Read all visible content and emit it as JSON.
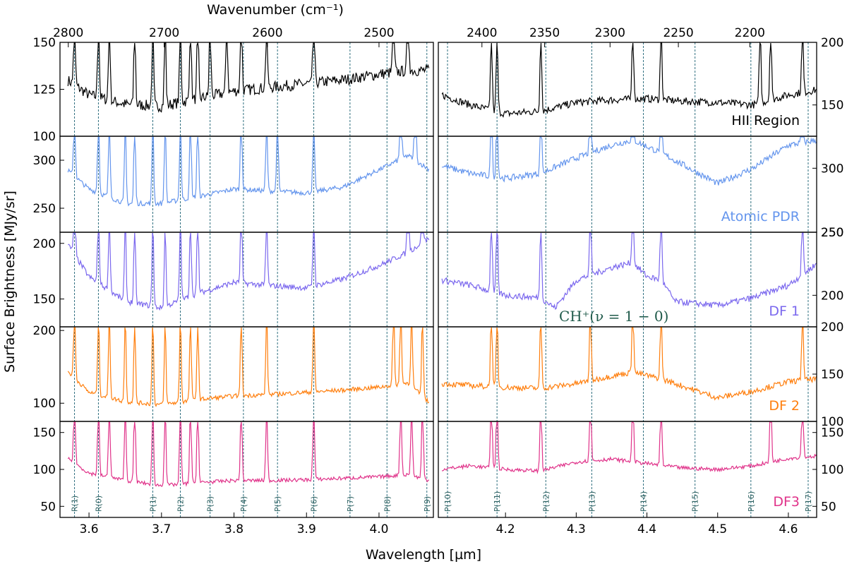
{
  "chart_data": {
    "type": "line",
    "xlabel": "Wavelength [µm]",
    "ylabel": "Surface Brightness [MJy/sr]",
    "top_xlabel": "Wavenumber (cm⁻¹)",
    "ch_label": "CH⁺(ν = 1 − 0)",
    "xlim_left": [
      3.56,
      4.075
    ],
    "xlim_right": [
      4.105,
      4.64
    ],
    "x_ticks_left": [
      "3.6",
      "3.7",
      "3.8",
      "3.9",
      "4.0"
    ],
    "x_ticks_right": [
      "4.2",
      "4.3",
      "4.4",
      "4.5",
      "4.6"
    ],
    "top_ticks_left": [
      "2800",
      "2700",
      "2600",
      "2500"
    ],
    "top_ticks_right": [
      "2400",
      "2350",
      "2300",
      "2250",
      "2200"
    ],
    "line_markers": [
      {
        "label": "R(1)",
        "x": 3.58
      },
      {
        "label": "R(0)",
        "x": 3.613
      },
      {
        "label": "P(1)",
        "x": 3.688
      },
      {
        "label": "P(2)",
        "x": 3.726
      },
      {
        "label": "P(3)",
        "x": 3.767
      },
      {
        "label": "P(4)",
        "x": 3.813
      },
      {
        "label": "P(5)",
        "x": 3.86
      },
      {
        "label": "P(6)",
        "x": 3.91
      },
      {
        "label": "P(7)",
        "x": 3.96
      },
      {
        "label": "P(8)",
        "x": 4.011
      },
      {
        "label": "P(9)",
        "x": 4.066
      },
      {
        "label": "P(10)",
        "x": 4.118
      },
      {
        "label": "P(11)",
        "x": 4.188
      },
      {
        "label": "P(12)",
        "x": 4.257
      },
      {
        "label": "P(13)",
        "x": 4.322
      },
      {
        "label": "P(14)",
        "x": 4.395
      },
      {
        "label": "P(15)",
        "x": 4.468
      },
      {
        "label": "P(16)",
        "x": 4.547
      },
      {
        "label": "P(17)",
        "x": 4.628
      }
    ],
    "panels": [
      {
        "name": "HII Region",
        "color": "#000000",
        "ylim_left": [
          100,
          150
        ],
        "ylim_right": [
          125,
          200
        ],
        "y_ticks_left": [
          "100",
          "125",
          "150"
        ],
        "y_ticks_right": [
          "150",
          "200"
        ],
        "left_continuum": [
          [
            3.57,
            130
          ],
          [
            3.6,
            122
          ],
          [
            3.65,
            117
          ],
          [
            3.7,
            116
          ],
          [
            3.75,
            120
          ],
          [
            3.8,
            124
          ],
          [
            3.85,
            126
          ],
          [
            3.9,
            128
          ],
          [
            3.95,
            130
          ],
          [
            4.0,
            133
          ],
          [
            4.04,
            135
          ],
          [
            4.07,
            135
          ]
        ],
        "right_continuum": [
          [
            4.11,
            158
          ],
          [
            4.15,
            150
          ],
          [
            4.2,
            143
          ],
          [
            4.25,
            145
          ],
          [
            4.3,
            152
          ],
          [
            4.35,
            154
          ],
          [
            4.4,
            155
          ],
          [
            4.45,
            153
          ],
          [
            4.5,
            152
          ],
          [
            4.55,
            150
          ],
          [
            4.6,
            158
          ],
          [
            4.64,
            162
          ]
        ],
        "peaks": [
          3.58,
          3.613,
          3.628,
          3.663,
          3.688,
          3.705,
          3.726,
          3.74,
          3.75,
          3.767,
          3.79,
          3.81,
          3.845,
          3.91,
          4.02,
          4.04,
          4.18,
          4.188,
          4.25,
          4.38,
          4.42,
          4.56,
          4.575,
          4.62
        ],
        "noise": 3
      },
      {
        "name": "Atomic PDR",
        "color": "#6495ed",
        "ylim_left": [
          225,
          325
        ],
        "ylim_right": [
          250,
          325
        ],
        "y_ticks_left": [
          "250",
          "300"
        ],
        "y_ticks_right": [
          "250",
          "300"
        ],
        "left_continuum": [
          [
            3.57,
            290
          ],
          [
            3.6,
            270
          ],
          [
            3.65,
            255
          ],
          [
            3.7,
            255
          ],
          [
            3.75,
            262
          ],
          [
            3.8,
            270
          ],
          [
            3.85,
            268
          ],
          [
            3.9,
            266
          ],
          [
            3.95,
            272
          ],
          [
            4.0,
            290
          ],
          [
            4.04,
            305
          ],
          [
            4.07,
            290
          ]
        ],
        "right_continuum": [
          [
            4.11,
            302
          ],
          [
            4.15,
            296
          ],
          [
            4.2,
            292
          ],
          [
            4.25,
            296
          ],
          [
            4.3,
            308
          ],
          [
            4.35,
            318
          ],
          [
            4.38,
            322
          ],
          [
            4.42,
            312
          ],
          [
            4.46,
            300
          ],
          [
            4.5,
            288
          ],
          [
            4.55,
            300
          ],
          [
            4.6,
            318
          ],
          [
            4.64,
            322
          ]
        ],
        "peaks": [
          3.58,
          3.613,
          3.628,
          3.65,
          3.663,
          3.688,
          3.705,
          3.726,
          3.74,
          3.75,
          3.81,
          3.845,
          3.86,
          3.91,
          4.03,
          4.05,
          4.18,
          4.188,
          4.25,
          4.32,
          4.38,
          4.42,
          4.62
        ],
        "noise": 2.5
      },
      {
        "name": "DF 1",
        "color": "#7b68ee",
        "ylim_left": [
          125,
          210
        ],
        "ylim_right": [
          175,
          250
        ],
        "y_ticks_left": [
          "150",
          "200"
        ],
        "y_ticks_right": [
          "200",
          "250"
        ],
        "left_continuum": [
          [
            3.57,
            200
          ],
          [
            3.6,
            170
          ],
          [
            3.65,
            148
          ],
          [
            3.7,
            142
          ],
          [
            3.75,
            155
          ],
          [
            3.8,
            165
          ],
          [
            3.85,
            162
          ],
          [
            3.9,
            160
          ],
          [
            3.95,
            168
          ],
          [
            4.0,
            180
          ],
          [
            4.04,
            192
          ],
          [
            4.07,
            205
          ]
        ],
        "right_continuum": [
          [
            4.11,
            212
          ],
          [
            4.15,
            208
          ],
          [
            4.2,
            200
          ],
          [
            4.25,
            198
          ],
          [
            4.27,
            190
          ],
          [
            4.3,
            212
          ],
          [
            4.35,
            222
          ],
          [
            4.38,
            226
          ],
          [
            4.4,
            215
          ],
          [
            4.42,
            212
          ],
          [
            4.44,
            195
          ],
          [
            4.5,
            192
          ],
          [
            4.55,
            198
          ],
          [
            4.6,
            208
          ],
          [
            4.64,
            225
          ]
        ],
        "peaks": [
          3.58,
          3.613,
          3.628,
          3.65,
          3.663,
          3.688,
          3.705,
          3.726,
          3.74,
          3.75,
          3.81,
          3.845,
          3.91,
          4.04,
          4.06,
          4.18,
          4.188,
          4.25,
          4.32,
          4.38,
          4.42,
          4.62
        ],
        "noise": 2.5
      },
      {
        "name": "DF 2",
        "color": "#ff7f0e",
        "ylim_left": [
          75,
          205
        ],
        "ylim_right": [
          100,
          200
        ],
        "y_ticks_left": [
          "100",
          "200"
        ],
        "y_ticks_right": [
          "100",
          "150",
          "200"
        ],
        "left_continuum": [
          [
            3.57,
            145
          ],
          [
            3.6,
            115
          ],
          [
            3.65,
            102
          ],
          [
            3.7,
            98
          ],
          [
            3.75,
            105
          ],
          [
            3.8,
            110
          ],
          [
            3.85,
            112
          ],
          [
            3.9,
            115
          ],
          [
            3.95,
            118
          ],
          [
            4.0,
            122
          ],
          [
            4.04,
            128
          ],
          [
            4.07,
            100
          ]
        ],
        "right_continuum": [
          [
            4.11,
            140
          ],
          [
            4.15,
            138
          ],
          [
            4.2,
            136
          ],
          [
            4.25,
            135
          ],
          [
            4.3,
            140
          ],
          [
            4.35,
            148
          ],
          [
            4.38,
            152
          ],
          [
            4.42,
            145
          ],
          [
            4.46,
            135
          ],
          [
            4.5,
            125
          ],
          [
            4.55,
            132
          ],
          [
            4.6,
            142
          ],
          [
            4.64,
            145
          ]
        ],
        "peaks": [
          3.58,
          3.613,
          3.628,
          3.65,
          3.663,
          3.688,
          3.705,
          3.726,
          3.74,
          3.75,
          3.81,
          3.845,
          3.91,
          4.02,
          4.03,
          4.045,
          4.06,
          4.18,
          4.188,
          4.25,
          4.32,
          4.38,
          4.42,
          4.62
        ],
        "noise": 3
      },
      {
        "name": "DF3",
        "color": "#e0338a",
        "ylim_left": [
          35,
          165
        ],
        "ylim_right": [
          35,
          165
        ],
        "y_ticks_left": [
          "50",
          "100",
          "150"
        ],
        "y_ticks_right": [
          "50",
          "100",
          "150"
        ],
        "left_continuum": [
          [
            3.57,
            115
          ],
          [
            3.6,
            95
          ],
          [
            3.65,
            85
          ],
          [
            3.7,
            78
          ],
          [
            3.75,
            82
          ],
          [
            3.8,
            85
          ],
          [
            3.85,
            85
          ],
          [
            3.9,
            86
          ],
          [
            3.95,
            88
          ],
          [
            4.0,
            90
          ],
          [
            4.04,
            93
          ],
          [
            4.07,
            85
          ]
        ],
        "right_continuum": [
          [
            4.11,
            100
          ],
          [
            4.15,
            105
          ],
          [
            4.2,
            100
          ],
          [
            4.25,
            98
          ],
          [
            4.3,
            110
          ],
          [
            4.35,
            114
          ],
          [
            4.4,
            108
          ],
          [
            4.45,
            102
          ],
          [
            4.5,
            100
          ],
          [
            4.55,
            105
          ],
          [
            4.6,
            115
          ],
          [
            4.64,
            118
          ]
        ],
        "peaks": [
          3.58,
          3.613,
          3.628,
          3.65,
          3.663,
          3.688,
          3.705,
          3.726,
          3.74,
          3.75,
          3.81,
          3.845,
          3.91,
          4.03,
          4.045,
          4.06,
          4.18,
          4.188,
          4.25,
          4.32,
          4.38,
          4.42,
          4.575,
          4.62
        ],
        "noise": 2.5
      }
    ]
  }
}
